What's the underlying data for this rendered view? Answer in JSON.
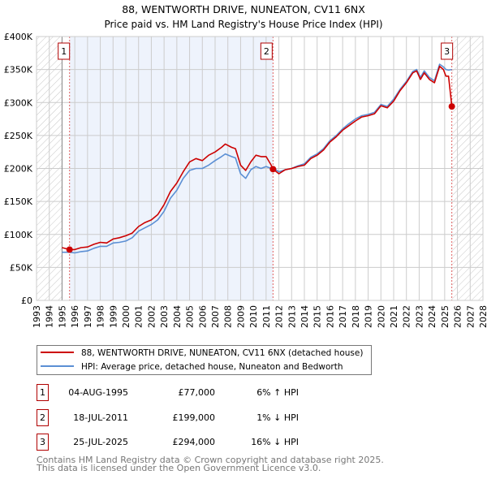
{
  "chart_data": {
    "type": "line",
    "title": "88, WENTWORTH DRIVE, NUNEATON, CV11 6NX",
    "subtitle": "Price paid vs. HM Land Registry's House Price Index (HPI)",
    "xlim": [
      1993,
      2028
    ],
    "ylim": [
      0,
      400000
    ],
    "x_ticks": [
      "1993",
      "1994",
      "1995",
      "1996",
      "1997",
      "1998",
      "1999",
      "2000",
      "2001",
      "2002",
      "2003",
      "2004",
      "2005",
      "2006",
      "2007",
      "2008",
      "2009",
      "2010",
      "2011",
      "2012",
      "2013",
      "2014",
      "2015",
      "2016",
      "2017",
      "2018",
      "2019",
      "2020",
      "2021",
      "2022",
      "2023",
      "2024",
      "2025",
      "2026",
      "2027",
      "2028"
    ],
    "y_ticks": [
      {
        "v": 0,
        "label": "£0"
      },
      {
        "v": 50000,
        "label": "£50K"
      },
      {
        "v": 100000,
        "label": "£100K"
      },
      {
        "v": 150000,
        "label": "£150K"
      },
      {
        "v": 200000,
        "label": "£200K"
      },
      {
        "v": 250000,
        "label": "£250K"
      },
      {
        "v": 300000,
        "label": "£300K"
      },
      {
        "v": 350000,
        "label": "£350K"
      },
      {
        "v": 400000,
        "label": "£400K"
      }
    ],
    "grid": true,
    "series": [
      {
        "name": "88, WENTWORTH DRIVE, NUNEATON, CV11 6NX (detached house)",
        "color": "#cc0000",
        "x": [
          1995.0,
          1995.59,
          1996,
          1996.5,
          1997,
          1997.5,
          1998,
          1998.5,
          1999,
          1999.5,
          2000,
          2000.5,
          2001,
          2001.5,
          2002,
          2002.5,
          2003,
          2003.5,
          2004,
          2004.5,
          2005,
          2005.5,
          2006,
          2006.5,
          2007,
          2007.5,
          2007.8,
          2008.3,
          2008.6,
          2009,
          2009.4,
          2009.8,
          2010.2,
          2010.6,
          2011,
          2011.4,
          2011.54,
          2012,
          2012.5,
          2013,
          2013.5,
          2014,
          2014.5,
          2015,
          2015.5,
          2016,
          2016.5,
          2017,
          2017.5,
          2018,
          2018.5,
          2019,
          2019.5,
          2020,
          2020.5,
          2021,
          2021.5,
          2022,
          2022.5,
          2022.8,
          2023.1,
          2023.4,
          2023.8,
          2024.2,
          2024.6,
          2024.9,
          2025.1,
          2025.3,
          2025.56
        ],
        "y": [
          80000,
          77000,
          77000,
          80000,
          81000,
          85000,
          88000,
          87000,
          93000,
          95000,
          98000,
          102000,
          112000,
          118000,
          122000,
          130000,
          145000,
          165000,
          178000,
          195000,
          210000,
          215000,
          212000,
          220000,
          225000,
          232000,
          237000,
          232000,
          230000,
          205000,
          197000,
          210000,
          220000,
          218000,
          218000,
          205000,
          199000,
          192000,
          198000,
          200000,
          203000,
          205000,
          215000,
          220000,
          228000,
          240000,
          248000,
          258000,
          265000,
          272000,
          278000,
          280000,
          283000,
          295000,
          292000,
          302000,
          318000,
          330000,
          345000,
          348000,
          335000,
          345000,
          335000,
          330000,
          355000,
          350000,
          340000,
          340000,
          294000
        ]
      },
      {
        "name": "HPI: Average price, detached house, Nuneaton and Bedworth",
        "color": "#5b8fd4",
        "x": [
          1995.0,
          1995.59,
          1996,
          1996.5,
          1997,
          1997.5,
          1998,
          1998.5,
          1999,
          1999.5,
          2000,
          2000.5,
          2001,
          2001.5,
          2002,
          2002.5,
          2003,
          2003.5,
          2004,
          2004.5,
          2005,
          2005.5,
          2006,
          2006.5,
          2007,
          2007.5,
          2007.8,
          2008.3,
          2008.6,
          2009,
          2009.4,
          2009.8,
          2010.2,
          2010.6,
          2011,
          2011.4,
          2011.54,
          2012,
          2012.5,
          2013,
          2013.5,
          2014,
          2014.5,
          2015,
          2015.5,
          2016,
          2016.5,
          2017,
          2017.5,
          2018,
          2018.5,
          2019,
          2019.5,
          2020,
          2020.5,
          2021,
          2021.5,
          2022,
          2022.5,
          2022.8,
          2023.1,
          2023.4,
          2023.8,
          2024.2,
          2024.6,
          2024.9,
          2025.1,
          2025.3,
          2025.56
        ],
        "y": [
          73000,
          73000,
          72000,
          74000,
          75000,
          79000,
          82000,
          82000,
          87000,
          88000,
          90000,
          95000,
          105000,
          110000,
          115000,
          122000,
          135000,
          155000,
          167000,
          185000,
          197000,
          200000,
          200000,
          205000,
          212000,
          218000,
          222000,
          218000,
          216000,
          192000,
          185000,
          198000,
          203000,
          200000,
          203000,
          200000,
          201000,
          195000,
          198000,
          200000,
          204000,
          207000,
          217000,
          222000,
          230000,
          242000,
          250000,
          260000,
          268000,
          275000,
          280000,
          282000,
          285000,
          297000,
          294000,
          305000,
          320000,
          332000,
          347000,
          350000,
          338000,
          348000,
          338000,
          333000,
          358000,
          354000,
          350000,
          349000,
          350000
        ]
      }
    ],
    "sales": [
      {
        "num": "1",
        "x": 1995.59,
        "y": 77000,
        "date": "04-AUG-1995",
        "price": "£77,000",
        "hpi": "6% ↑ HPI"
      },
      {
        "num": "2",
        "x": 2011.54,
        "y": 199000,
        "date": "18-JUL-2011",
        "price": "£199,000",
        "hpi": "1% ↓ HPI"
      },
      {
        "num": "3",
        "x": 2025.56,
        "y": 294000,
        "date": "25-JUL-2025",
        "price": "£294,000",
        "hpi": "16% ↓ HPI"
      }
    ],
    "shaded_span": [
      1995.59,
      2011.54
    ],
    "hatched_before": 1995.0,
    "hatched_after": 2025.56,
    "legend_position": "below"
  },
  "footer": {
    "line1": "Contains HM Land Registry data © Crown copyright and database right 2025.",
    "line2": "This data is licensed under the Open Government Licence v3.0."
  }
}
